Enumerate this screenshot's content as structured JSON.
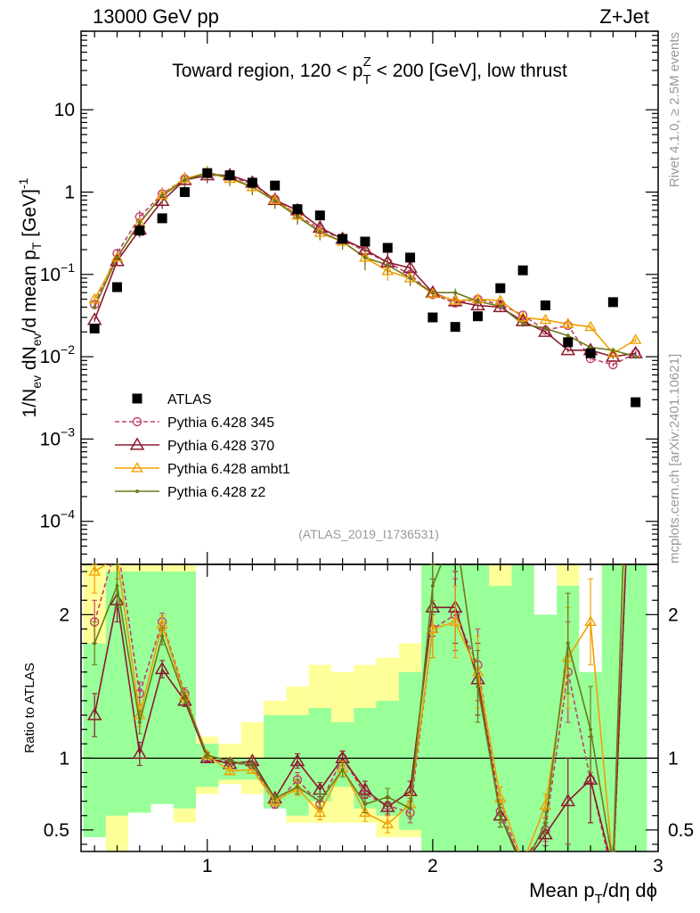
{
  "header": {
    "left": "13000 GeV pp",
    "right": "Z+Jet"
  },
  "side_labels": {
    "rivet": "Rivet 4.1.0, ≥ 2.5M events",
    "mcplots": "mcplots.cern.ch [arXiv:2401.10621]"
  },
  "chart_data": {
    "type": "scatter",
    "title_parts": {
      "before": "Toward region, 120 < p",
      "sub": "T",
      "sup": "Z",
      "after": " < 200 [GeV], low thrust"
    },
    "analysis_label": "(ATLAS_2019_I1736531)",
    "xlabel_parts": {
      "main": "Mean p",
      "sub": "T",
      "rest": "/dη dϕ"
    },
    "ylabel_parts": {
      "a": "1/N",
      "a_sub": "ev",
      "b": " dN",
      "b_sub": "ev",
      "c": "/d mean p",
      "c_sub": "T",
      "d": " [GeV]",
      "d_sup": "-1"
    },
    "ratio_ylabel": "Ratio to ATLAS",
    "x_range": [
      0.44,
      3.0
    ],
    "y_range": [
      3e-05,
      90
    ],
    "y_scale": "log",
    "ratio_range": [
      0.35,
      2.35
    ],
    "x_ticks": [
      {
        "v": 1,
        "label": "1"
      },
      {
        "v": 2,
        "label": "2"
      },
      {
        "v": 3,
        "label": "3"
      }
    ],
    "y_ticks": [
      {
        "v": 0.0001,
        "m": "10",
        "e": "−4"
      },
      {
        "v": 0.001,
        "m": "10",
        "e": "−3"
      },
      {
        "v": 0.01,
        "m": "10",
        "e": "−2"
      },
      {
        "v": 0.1,
        "m": "10",
        "e": "−1"
      },
      {
        "v": 1,
        "m": "1",
        "e": ""
      },
      {
        "v": 10,
        "m": "10",
        "e": ""
      }
    ],
    "ratio_ticks": [
      {
        "v": 0.5,
        "label": "0.5"
      },
      {
        "v": 1,
        "label": "1"
      },
      {
        "v": 2,
        "label": "2"
      }
    ],
    "x": [
      0.5,
      0.6,
      0.7,
      0.8,
      0.9,
      1.0,
      1.1,
      1.2,
      1.3,
      1.4,
      1.5,
      1.6,
      1.7,
      1.8,
      1.9,
      2.0,
      2.1,
      2.2,
      2.3,
      2.4,
      2.5,
      2.6,
      2.7,
      2.8,
      2.9
    ],
    "band": {
      "green": [
        [
          0.45,
          1.8
        ],
        [
          0.6,
          2.3
        ],
        [
          0.6,
          2.3
        ],
        [
          0.65,
          2.3
        ],
        [
          0.65,
          2.3
        ],
        [
          0.8,
          1.1
        ],
        [
          0.85,
          1.0
        ],
        [
          0.85,
          1.0
        ],
        [
          0.6,
          1.3
        ],
        [
          0.6,
          1.3
        ],
        [
          0.7,
          1.35
        ],
        [
          0.8,
          1.25
        ],
        [
          0.65,
          1.35
        ],
        [
          0.6,
          1.4
        ],
        [
          0.5,
          1.6
        ],
        [
          0.35,
          2.35
        ],
        [
          0.35,
          2.35
        ],
        [
          0.35,
          2.35
        ],
        [
          0.35,
          2.2
        ],
        [
          0.35,
          2.35
        ],
        [
          0.35,
          2.35
        ],
        [
          0.35,
          2.2
        ],
        [
          0.35,
          2.2
        ],
        [
          0.35,
          2.35
        ],
        [
          0.35,
          2.35
        ]
      ],
      "yellow": [
        [
          0.45,
          2.35
        ],
        [
          0.35,
          2.35
        ],
        [
          0.35,
          2.35
        ],
        [
          0.35,
          2.35
        ],
        [
          0.55,
          2.35
        ],
        [
          0.75,
          1.15
        ],
        [
          0.8,
          1.1
        ],
        [
          0.75,
          1.25
        ],
        [
          0.55,
          1.4
        ],
        [
          0.55,
          1.5
        ],
        [
          0.55,
          1.65
        ],
        [
          0.55,
          1.6
        ],
        [
          0.55,
          1.65
        ],
        [
          0.4,
          1.7
        ],
        [
          0.45,
          1.8
        ],
        [
          0.35,
          2.35
        ],
        [
          0.35,
          2.35
        ],
        [
          0.35,
          2.35
        ],
        [
          0.35,
          2.35
        ],
        [
          0.35,
          2.35
        ],
        [
          0.35,
          2.35
        ],
        [
          0.35,
          2.35
        ],
        [
          0.35,
          2.35
        ],
        [
          0.35,
          2.35
        ],
        [
          0.35,
          2.35
        ]
      ],
      "white": [
        [],
        [],
        [],
        [],
        [],
        [],
        [],
        [],
        [],
        [],
        [],
        [],
        [],
        [],
        [],
        [],
        [],
        [],
        [],
        [],
        [
          2.0,
          2.35
        ],
        [],
        [
          1.6,
          2.35
        ],
        [],
        []
      ],
      "white_low": [
        [],
        [],
        [
          0.35,
          0.62
        ],
        [
          0.35,
          0.68
        ],
        [],
        [
          0.35,
          0.75
        ],
        [
          0.35,
          0.82
        ],
        [
          0.35,
          0.7
        ],
        [
          0.35,
          0.65
        ],
        [],
        [],
        [],
        [],
        [
          0.35,
          0.45
        ],
        [],
        [],
        [],
        [],
        [],
        [],
        [],
        [],
        [],
        [],
        []
      ]
    },
    "series": [
      {
        "name": "ATLAS",
        "color": "#000000",
        "marker": "square",
        "line": "none",
        "values": [
          0.022,
          0.07,
          0.34,
          0.48,
          1.0,
          1.7,
          1.6,
          1.3,
          1.2,
          0.62,
          0.52,
          0.27,
          0.25,
          0.21,
          0.16,
          0.03,
          0.023,
          0.031,
          0.068,
          0.112,
          0.042,
          0.015,
          0.011,
          0.046,
          0.0028
        ]
      },
      {
        "name": "Pythia 6.428 345",
        "color": "#c0406a",
        "marker": "circle",
        "line": "dashed",
        "values": [
          0.043,
          0.18,
          0.5,
          0.95,
          1.45,
          1.7,
          1.55,
          1.25,
          0.82,
          0.53,
          0.35,
          0.27,
          0.19,
          0.14,
          0.1,
          0.057,
          0.045,
          0.05,
          0.043,
          0.032,
          0.021,
          0.024,
          0.0095,
          0.008,
          0.011
        ],
        "errors": [
          0.004,
          0.005,
          0.01,
          0.01,
          0.01,
          0.01,
          0.01,
          0.01,
          0.01,
          0.01,
          0.01,
          0.01,
          0.015,
          0.015,
          0.012,
          0.006,
          0.006,
          0.005,
          0.005,
          0.004,
          0.003,
          0.004,
          0.003,
          0.003,
          0.003
        ],
        "ratio": [
          1.95,
          2.5,
          1.45,
          1.95,
          1.45,
          1.0,
          0.97,
          0.95,
          0.68,
          0.85,
          0.68,
          1.0,
          0.75,
          0.67,
          0.62,
          1.9,
          2.0,
          1.65,
          0.63,
          0.29,
          0.5,
          1.6,
          0.85,
          0.17,
          4.0
        ],
        "ratio_err": [
          0.15,
          0.15,
          0.08,
          0.06,
          0.04,
          0.02,
          0.02,
          0.02,
          0.03,
          0.05,
          0.05,
          0.05,
          0.06,
          0.06,
          0.07,
          0.2,
          0.25,
          0.25,
          0.08,
          0.05,
          0.08,
          0.35,
          0.3,
          0.1,
          1.0
        ]
      },
      {
        "name": "Pythia 6.428 370",
        "color": "#8b1a2e",
        "marker": "triangle",
        "line": "solid",
        "values": [
          0.028,
          0.145,
          0.35,
          0.78,
          1.4,
          1.6,
          1.6,
          1.3,
          0.8,
          0.6,
          0.37,
          0.27,
          0.2,
          0.14,
          0.12,
          0.06,
          0.047,
          0.042,
          0.04,
          0.027,
          0.02,
          0.012,
          0.012,
          0.01,
          0.011
        ],
        "errors": [
          0.003,
          0.005,
          0.01,
          0.01,
          0.01,
          0.01,
          0.01,
          0.01,
          0.01,
          0.01,
          0.01,
          0.01,
          0.015,
          0.015,
          0.012,
          0.006,
          0.006,
          0.005,
          0.005,
          0.004,
          0.003,
          0.003,
          0.003,
          0.003,
          0.003
        ],
        "ratio": [
          1.3,
          2.1,
          1.03,
          1.62,
          1.4,
          1.0,
          0.96,
          0.98,
          0.72,
          0.98,
          0.78,
          1.0,
          0.78,
          0.66,
          0.77,
          2.05,
          2.05,
          1.55,
          0.6,
          0.25,
          0.47,
          0.7,
          0.85,
          0.22,
          4.0
        ],
        "ratio_err": [
          0.15,
          0.15,
          0.08,
          0.06,
          0.04,
          0.02,
          0.02,
          0.02,
          0.03,
          0.05,
          0.05,
          0.05,
          0.06,
          0.06,
          0.07,
          0.2,
          0.25,
          0.25,
          0.08,
          0.05,
          0.08,
          0.3,
          0.3,
          0.1,
          1.0
        ]
      },
      {
        "name": "Pythia 6.428 ambt1",
        "color": "#f0a000",
        "marker": "triangle-open",
        "line": "solid",
        "values": [
          0.05,
          0.16,
          0.42,
          0.92,
          1.45,
          1.72,
          1.45,
          1.15,
          0.8,
          0.52,
          0.32,
          0.25,
          0.16,
          0.11,
          0.09,
          0.058,
          0.048,
          0.05,
          0.048,
          0.03,
          0.028,
          0.025,
          0.023,
          0.011,
          0.016
        ],
        "errors": [
          0.004,
          0.005,
          0.01,
          0.01,
          0.01,
          0.01,
          0.01,
          0.01,
          0.01,
          0.01,
          0.01,
          0.01,
          0.015,
          0.012,
          0.01,
          0.006,
          0.006,
          0.005,
          0.005,
          0.004,
          0.003,
          0.003,
          0.003,
          0.003,
          0.003
        ],
        "ratio": [
          2.3,
          2.4,
          1.3,
          1.93,
          1.43,
          1.02,
          0.91,
          0.92,
          0.7,
          0.79,
          0.62,
          0.93,
          0.62,
          0.54,
          0.68,
          1.9,
          1.95,
          1.6,
          0.72,
          0.27,
          0.67,
          1.7,
          1.95,
          0.24,
          5.0
        ],
        "ratio_err": [
          0.15,
          0.15,
          0.08,
          0.06,
          0.04,
          0.02,
          0.02,
          0.02,
          0.03,
          0.05,
          0.05,
          0.05,
          0.06,
          0.06,
          0.07,
          0.2,
          0.25,
          0.25,
          0.08,
          0.05,
          0.08,
          0.35,
          0.3,
          0.1,
          1.0
        ]
      },
      {
        "name": "Pythia 6.428 z2",
        "color": "#6b7a1a",
        "marker": "dot",
        "line": "solid",
        "values": [
          0.04,
          0.16,
          0.43,
          0.9,
          1.4,
          1.72,
          1.5,
          1.15,
          0.78,
          0.5,
          0.33,
          0.25,
          0.16,
          0.13,
          0.09,
          0.06,
          0.06,
          0.047,
          0.041,
          0.025,
          0.022,
          0.018,
          0.013,
          0.012,
          0.01
        ],
        "errors": [
          0.003,
          0.005,
          0.01,
          0.01,
          0.01,
          0.01,
          0.01,
          0.01,
          0.01,
          0.01,
          0.01,
          0.01,
          0.015,
          0.012,
          0.01,
          0.006,
          0.006,
          0.005,
          0.005,
          0.004,
          0.003,
          0.003,
          0.003,
          0.003,
          0.003
        ],
        "ratio": [
          1.8,
          2.2,
          1.25,
          1.85,
          1.42,
          1.02,
          0.98,
          0.95,
          0.72,
          0.8,
          0.7,
          0.92,
          0.68,
          0.73,
          0.65,
          2.2,
          2.6,
          1.5,
          0.6,
          0.22,
          0.55,
          1.8,
          1.2,
          0.26,
          5.0
        ],
        "ratio_err": [
          0.15,
          0.15,
          0.08,
          0.06,
          0.04,
          0.02,
          0.02,
          0.02,
          0.03,
          0.05,
          0.05,
          0.05,
          0.06,
          0.06,
          0.07,
          0.2,
          0.25,
          0.25,
          0.08,
          0.05,
          0.08,
          0.35,
          0.3,
          0.1,
          1.0
        ]
      }
    ]
  }
}
